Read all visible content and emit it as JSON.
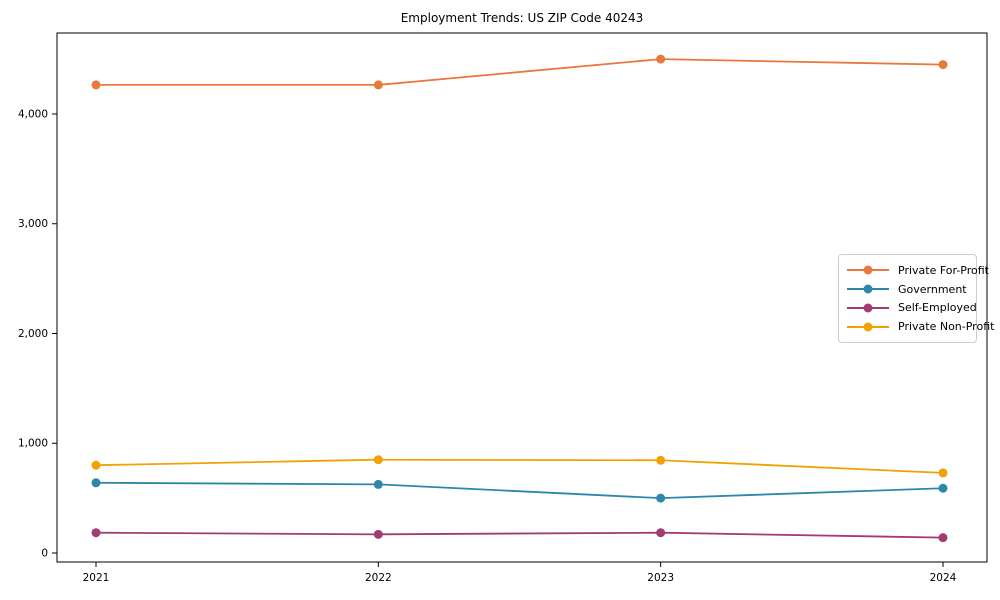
{
  "chart_data": {
    "type": "line",
    "title": "Employment Trends: US ZIP Code 40243",
    "xlabel": "",
    "ylabel": "",
    "categories": [
      "2021",
      "2022",
      "2023",
      "2024"
    ],
    "series": [
      {
        "name": "Private For-Profit",
        "color": "#E8793E",
        "values": [
          4265,
          4265,
          4500,
          4450
        ]
      },
      {
        "name": "Government",
        "color": "#2E86AB",
        "values": [
          640,
          625,
          500,
          590
        ]
      },
      {
        "name": "Self-Employed",
        "color": "#A23B72",
        "values": [
          185,
          170,
          185,
          140
        ]
      },
      {
        "name": "Private Non-Profit",
        "color": "#F2A104",
        "values": [
          800,
          850,
          845,
          730
        ]
      }
    ],
    "yticks": {
      "values": [
        0,
        1000,
        2000,
        3000,
        4000
      ],
      "labels": [
        "0",
        "1,000",
        "2,000",
        "3,000",
        "4,000"
      ]
    },
    "ylim": [
      -82,
      4738
    ],
    "grid": false,
    "marker": "circle",
    "legend_position": "center-right"
  }
}
